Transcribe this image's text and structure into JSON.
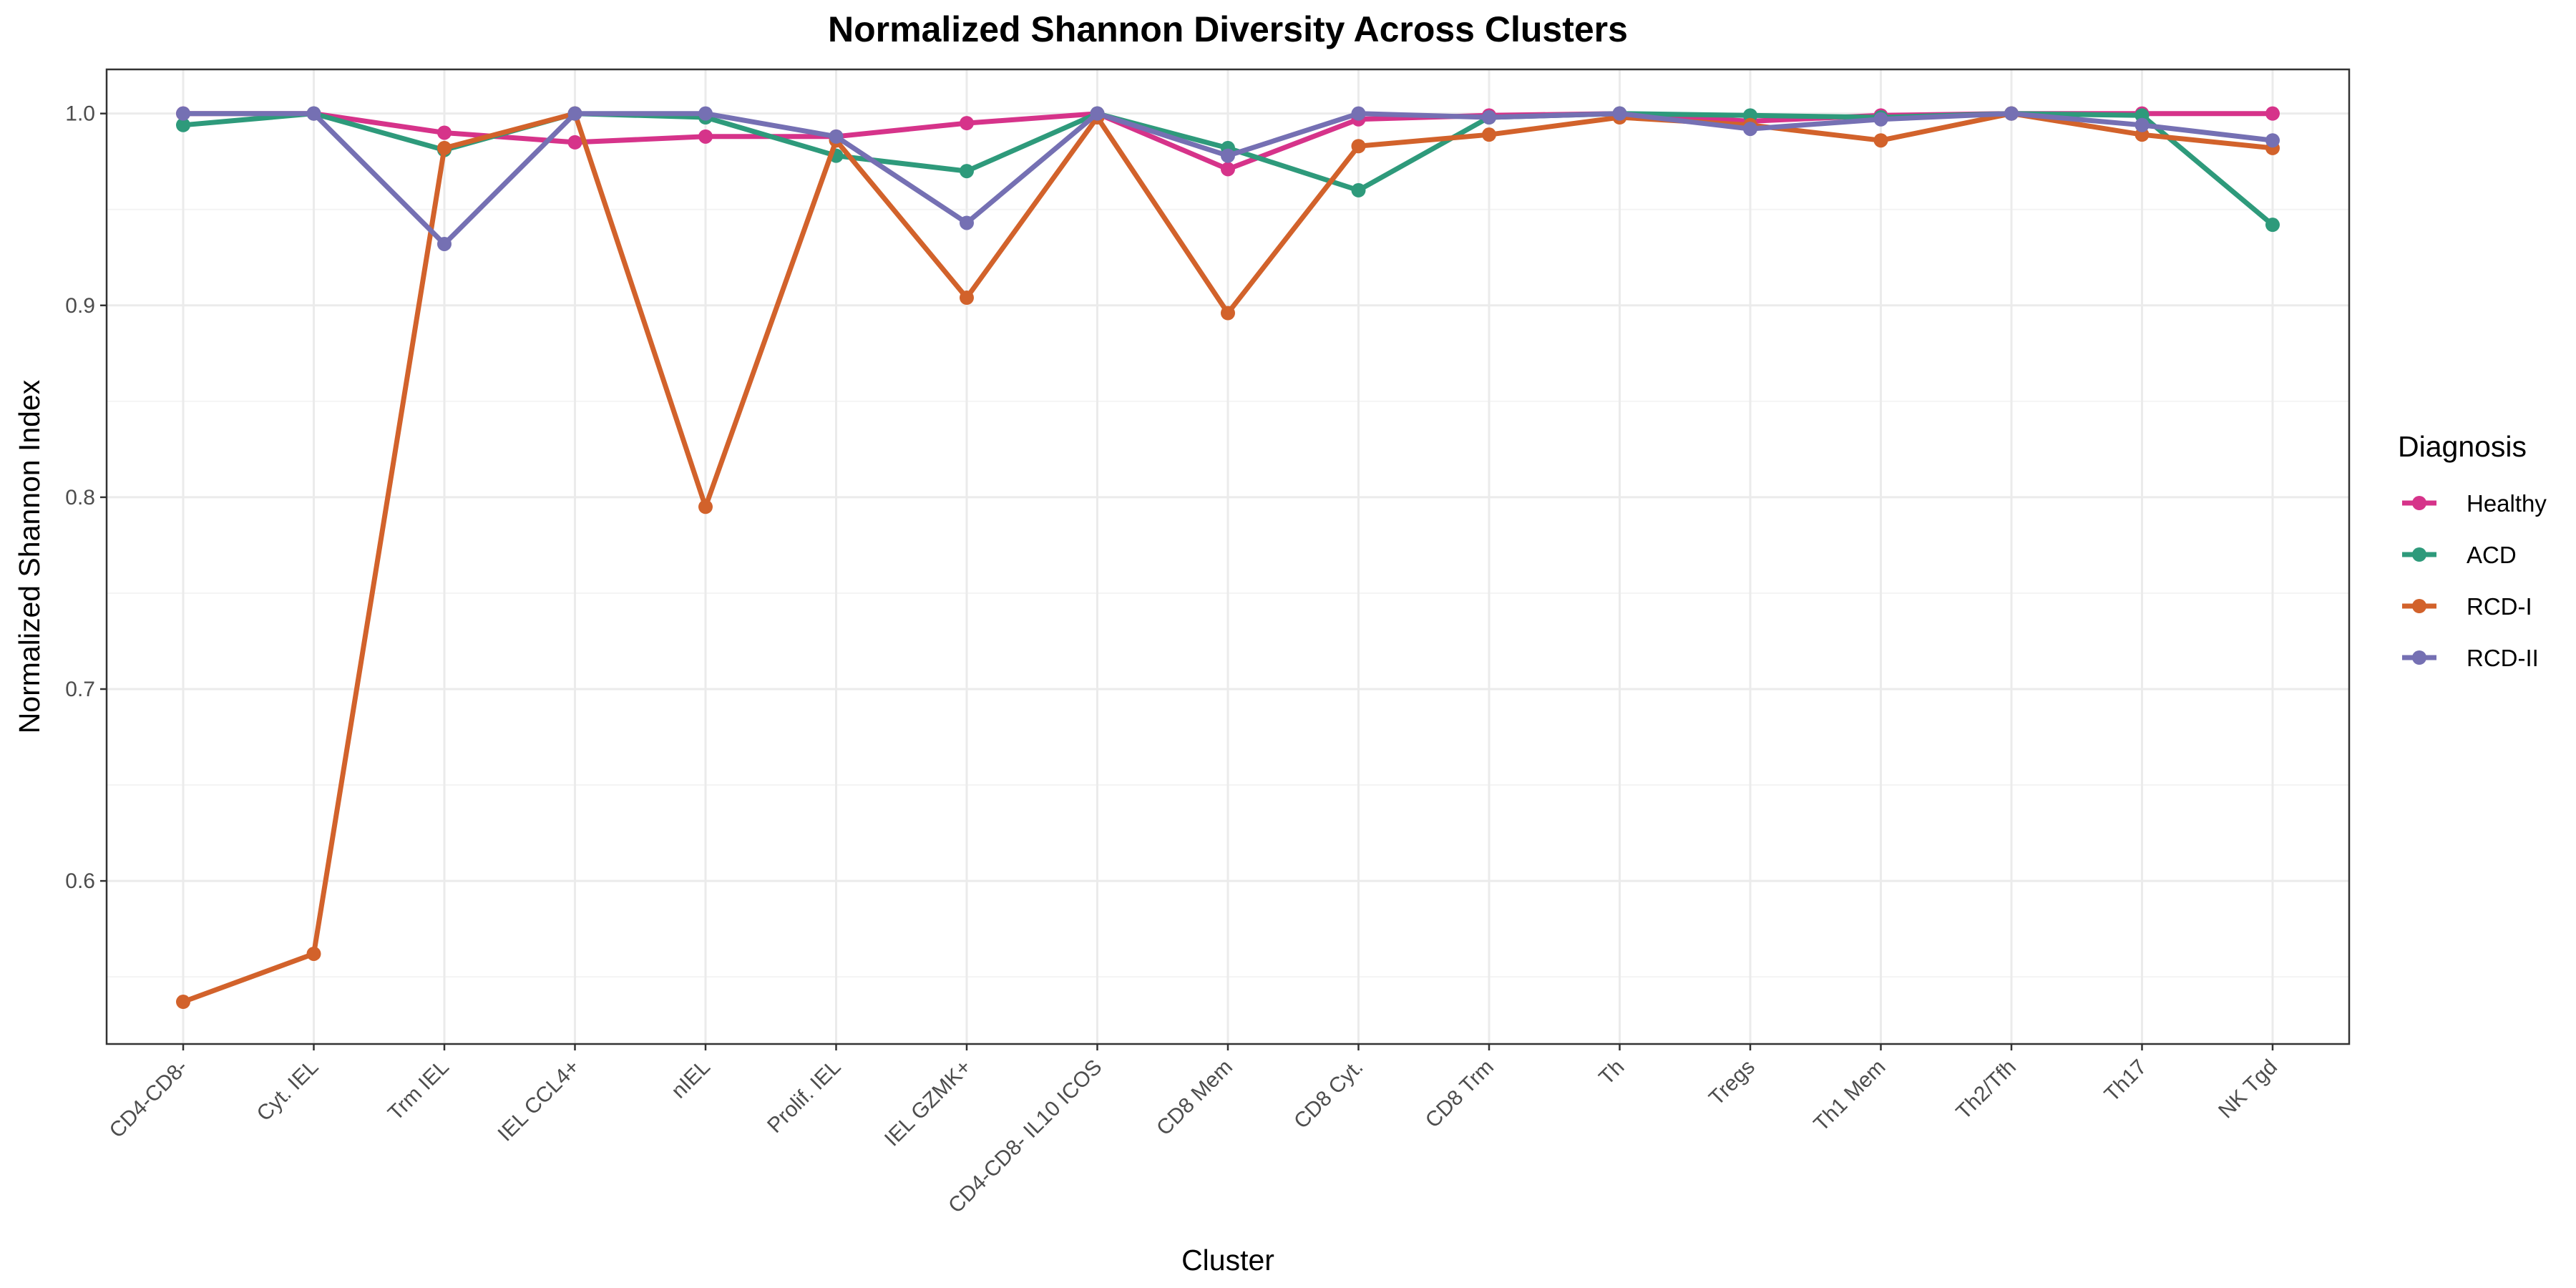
{
  "chart_data": {
    "type": "line",
    "title": "Normalized Shannon Diversity Across Clusters",
    "xlabel": "Cluster",
    "ylabel": "Normalized Shannon Index",
    "ylim": [
      0.515,
      1.023
    ],
    "yticks": [
      0.6,
      0.7,
      0.8,
      0.9,
      1.0
    ],
    "ytick_labels": [
      "0.6",
      "0.7",
      "0.8",
      "0.9",
      "1.0"
    ],
    "grid": true,
    "legend": {
      "title": "Diagnosis",
      "position": "right"
    },
    "categories": [
      "CD4-CD8-",
      "Cyt. IEL",
      "Trm IEL",
      "IEL CCL4+",
      "nIEL",
      "Prolif. IEL",
      "IEL GZMK+",
      "CD4-CD8- IL10 ICOS",
      "CD8 Mem",
      "CD8 Cyt.",
      "CD8 Trm",
      "Th",
      "Tregs",
      "Th1 Mem",
      "Th2/Tfh",
      "Th17",
      "NK Tgd"
    ],
    "series": [
      {
        "name": "Healthy",
        "color": "#d6338a",
        "values": [
          1.0,
          1.0,
          0.99,
          0.985,
          0.988,
          0.988,
          0.995,
          1.0,
          0.971,
          0.997,
          0.999,
          1.0,
          0.996,
          0.999,
          1.0,
          1.0,
          1.0
        ]
      },
      {
        "name": "ACD",
        "color": "#2e9a7b",
        "values": [
          0.994,
          1.0,
          0.981,
          1.0,
          0.998,
          0.978,
          0.97,
          1.0,
          0.982,
          0.96,
          0.998,
          1.0,
          0.999,
          0.998,
          1.0,
          0.999,
          0.942
        ]
      },
      {
        "name": "RCD-I",
        "color": "#d2622b",
        "values": [
          0.537,
          0.562,
          0.982,
          1.0,
          0.795,
          0.986,
          0.904,
          0.998,
          0.896,
          0.983,
          0.989,
          0.998,
          0.994,
          0.986,
          1.0,
          0.989,
          0.982
        ]
      },
      {
        "name": "RCD-II",
        "color": "#7570b3",
        "values": [
          1.0,
          1.0,
          0.932,
          1.0,
          1.0,
          0.988,
          0.943,
          1.0,
          0.978,
          1.0,
          0.998,
          1.0,
          0.992,
          0.997,
          1.0,
          0.994,
          0.986
        ]
      }
    ]
  }
}
